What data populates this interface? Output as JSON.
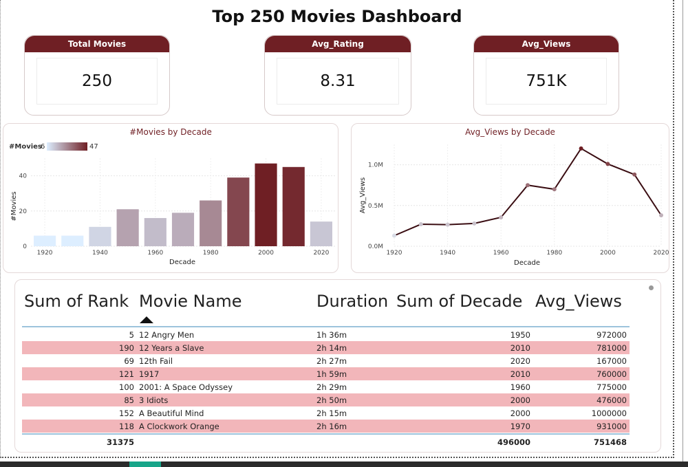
{
  "title": "Top 250 Movies Dashboard",
  "kpis": [
    {
      "label": "Total Movies",
      "value": "250"
    },
    {
      "label": "Avg_Rating",
      "value": "8.31"
    },
    {
      "label": "Avg_Views",
      "value": "751K"
    }
  ],
  "colors": {
    "accent": "#6f1f24",
    "row_alt": "#f2b6ba",
    "rule": "#9cc3dc",
    "gradient_low": "#ddeeff",
    "gradient_high": "#6f1f24"
  },
  "chart_data": [
    {
      "type": "bar",
      "title": "#Movies by Decade",
      "xlabel": "Decade",
      "ylabel": "#Movies",
      "legend": {
        "label": "#Movies",
        "min": "6",
        "max": "47"
      },
      "x": [
        1920,
        1930,
        1940,
        1950,
        1960,
        1970,
        1980,
        1990,
        2000,
        2010,
        2020
      ],
      "values": [
        6,
        6,
        11,
        21,
        16,
        19,
        26,
        39,
        47,
        45,
        14
      ],
      "xticks": [
        "1920",
        "1940",
        "1960",
        "1980",
        "2000",
        "2020"
      ],
      "yticks": [
        "0",
        "20",
        "40"
      ],
      "ylim": [
        0,
        50
      ]
    },
    {
      "type": "line",
      "title": "Avg_Views by Decade",
      "xlabel": "Decade",
      "ylabel": "Avg_Views",
      "x": [
        1920,
        1930,
        1940,
        1950,
        1960,
        1970,
        1980,
        1990,
        2000,
        2010,
        2020
      ],
      "values": [
        130000,
        270000,
        265000,
        280000,
        355000,
        750000,
        700000,
        1200000,
        1010000,
        880000,
        380000
      ],
      "xticks": [
        "1920",
        "1940",
        "1960",
        "1980",
        "2000",
        "2020"
      ],
      "yticks": [
        "0.0M",
        "0.5M",
        "1.0M"
      ],
      "ylim": [
        0,
        1250000
      ]
    }
  ],
  "table": {
    "headers": {
      "rank": "Sum of Rank",
      "name": "Movie Name",
      "duration": "Duration",
      "decade": "Sum of Decade",
      "views": "Avg_Views"
    },
    "rows": [
      {
        "rank": "5",
        "name": "12 Angry Men",
        "duration": "1h 36m",
        "decade": "1950",
        "views": "972000"
      },
      {
        "rank": "190",
        "name": "12 Years a Slave",
        "duration": "2h 14m",
        "decade": "2010",
        "views": "781000"
      },
      {
        "rank": "69",
        "name": "12th Fail",
        "duration": "2h 27m",
        "decade": "2020",
        "views": "167000"
      },
      {
        "rank": "121",
        "name": "1917",
        "duration": "1h 59m",
        "decade": "2010",
        "views": "760000"
      },
      {
        "rank": "100",
        "name": "2001: A Space Odyssey",
        "duration": "2h 29m",
        "decade": "1960",
        "views": "775000"
      },
      {
        "rank": "85",
        "name": "3 Idiots",
        "duration": "2h 50m",
        "decade": "2000",
        "views": "476000"
      },
      {
        "rank": "152",
        "name": "A Beautiful Mind",
        "duration": "2h 15m",
        "decade": "2000",
        "views": "1000000"
      },
      {
        "rank": "118",
        "name": "A Clockwork Orange",
        "duration": "2h 16m",
        "decade": "1970",
        "views": "931000"
      }
    ],
    "totals": {
      "rank": "31375",
      "decade": "496000",
      "views": "751468"
    }
  }
}
